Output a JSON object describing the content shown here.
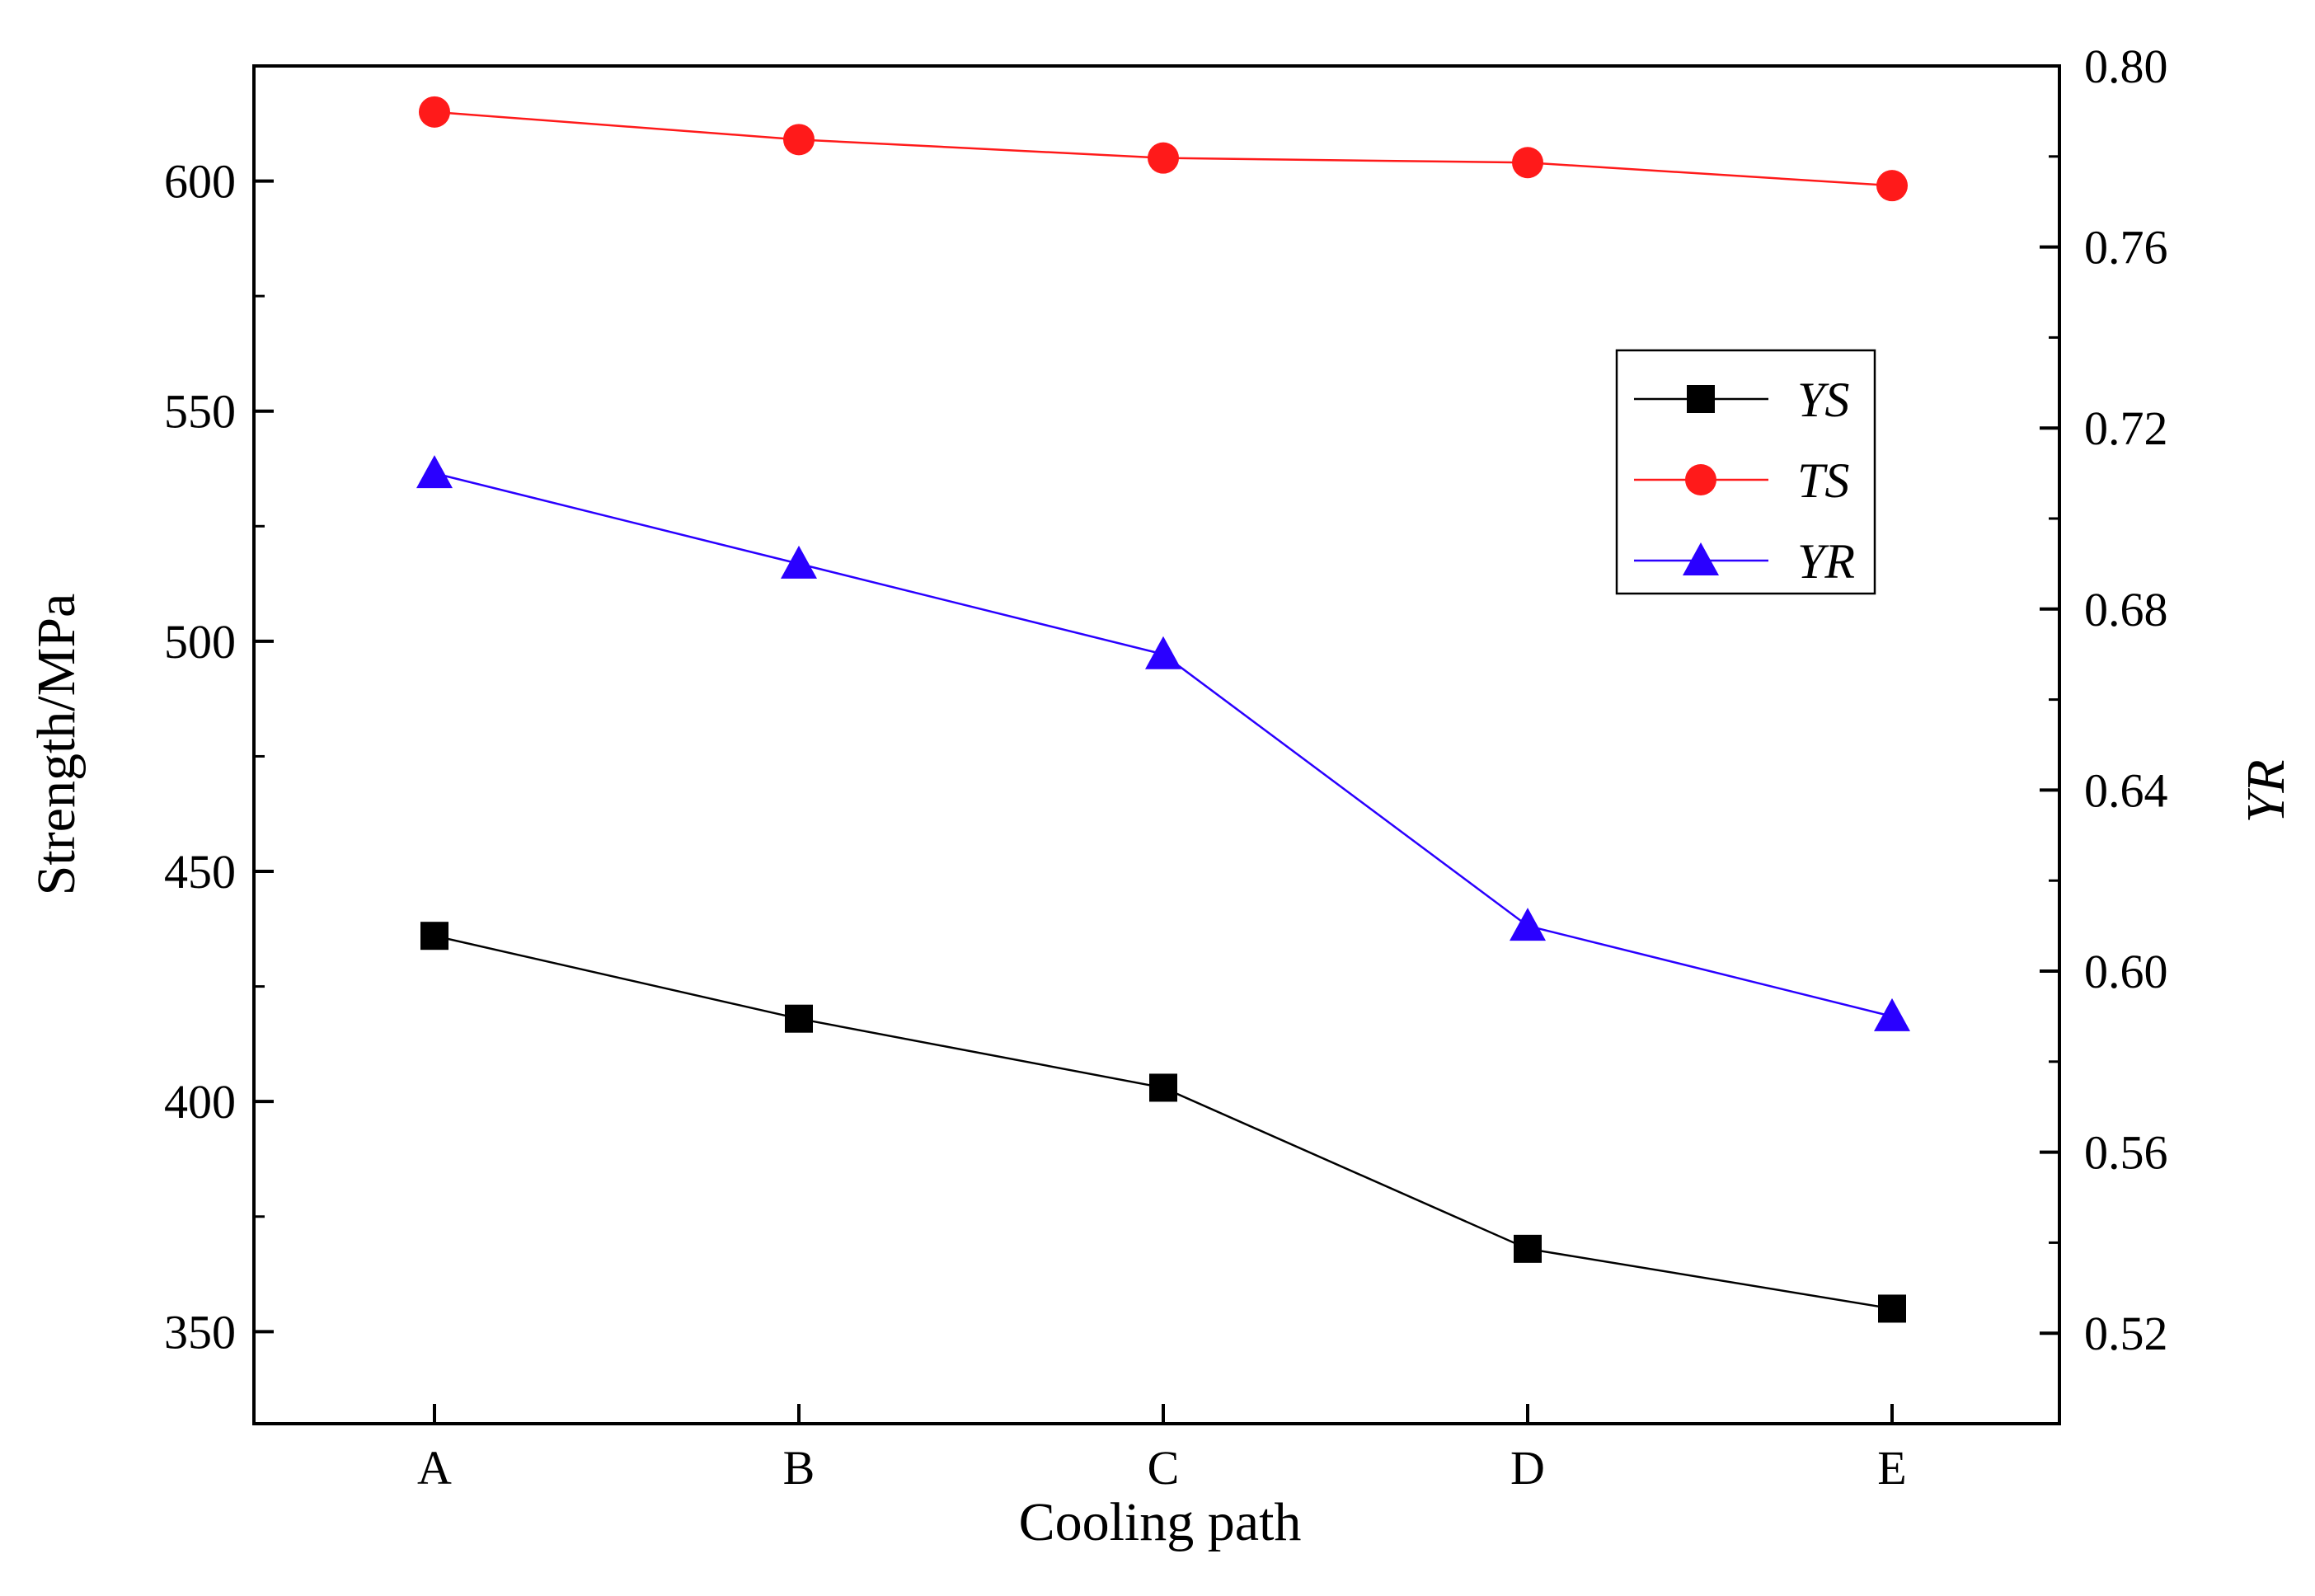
{
  "chart_data": {
    "type": "line",
    "title": "",
    "categories": [
      "A",
      "B",
      "C",
      "D",
      "E"
    ],
    "xlabel": "Cooling path",
    "ylabel": "Strength/MPa",
    "y2label": "YR",
    "ylim": [
      330,
      625
    ],
    "y2lim": [
      0.5,
      0.8
    ],
    "yticks": [
      "350",
      "400",
      "450",
      "500",
      "550",
      "600"
    ],
    "y2ticks": [
      "0.52",
      "0.56",
      "0.60",
      "0.64",
      "0.68",
      "0.72",
      "0.76",
      "0.80"
    ],
    "legend_position": "top-right",
    "grid": false,
    "series": [
      {
        "name": "YS",
        "axis": "left",
        "marker": "square",
        "color": "#000000",
        "values": [
          436,
          418,
          403,
          368,
          355
        ]
      },
      {
        "name": "TS",
        "axis": "left",
        "marker": "circle",
        "color": "#ff1a1a",
        "values": [
          615,
          609,
          605,
          604,
          599
        ]
      },
      {
        "name": "YR",
        "axis": "right",
        "marker": "triangle",
        "color": "#2a00ff",
        "values": [
          0.71,
          0.69,
          0.67,
          0.61,
          0.59
        ]
      }
    ]
  }
}
